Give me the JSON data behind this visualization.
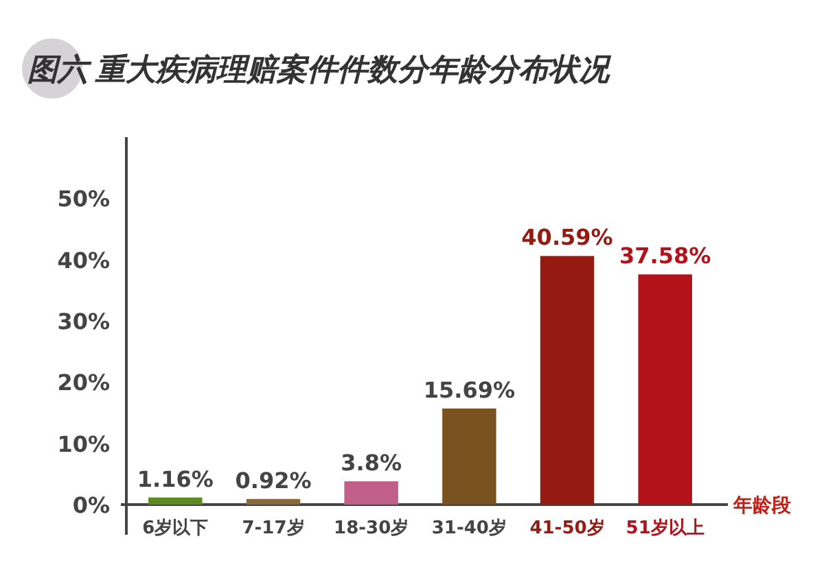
{
  "chart_data": {
    "type": "bar",
    "title": "图六 重大疾病理赔案件件数分年龄分布状况",
    "xlabel": "年龄段",
    "categories": [
      "6岁以下",
      "7-17岁",
      "18-30岁",
      "31-40岁",
      "41-50岁",
      "51岁以上"
    ],
    "values": [
      1.16,
      0.92,
      3.8,
      15.69,
      40.59,
      37.58
    ],
    "colors": [
      "#5e8a1e",
      "#8a6a3a",
      "#c0608a",
      "#7a5220",
      "#951b12",
      "#b3121a"
    ],
    "value_labels": [
      "1.16%",
      "0.92%",
      "3.8%",
      "15.69%",
      "40.59%",
      "37.58%"
    ],
    "ylim": [
      0,
      60
    ],
    "yticks": [
      {
        "value": 0,
        "label": "0%"
      },
      {
        "value": 10,
        "label": "10%"
      },
      {
        "value": 20,
        "label": "20%"
      },
      {
        "value": 30,
        "label": "30%"
      },
      {
        "value": 40,
        "label": "40%"
      },
      {
        "value": 50,
        "label": "50%"
      }
    ],
    "grid": false
  }
}
